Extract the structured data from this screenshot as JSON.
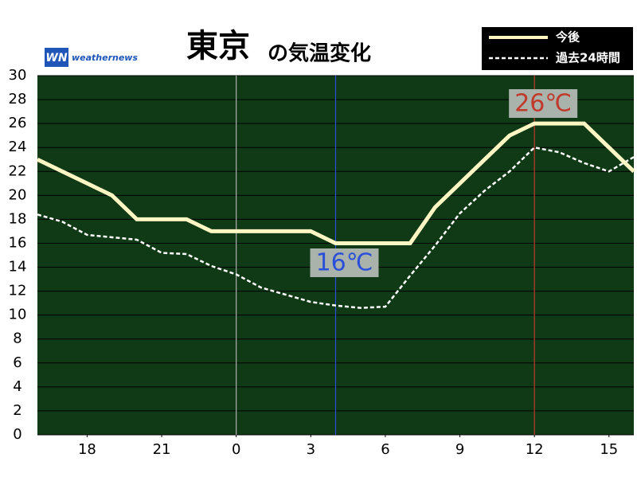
{
  "chart_data": {
    "type": "line",
    "title_main": "東京",
    "title_sub": "の気温変化",
    "logo": {
      "mark": "WN",
      "text": "weathernews"
    },
    "x": [
      16,
      17,
      18,
      19,
      20,
      21,
      22,
      23,
      24,
      25,
      26,
      27,
      28,
      29,
      30,
      31,
      32,
      33,
      34,
      35,
      36,
      37,
      38,
      39,
      40
    ],
    "series": [
      {
        "name": "今後",
        "color": "#fff6c4",
        "dashed": false,
        "values": [
          23,
          22,
          21,
          20,
          18,
          18,
          18,
          17,
          17,
          17,
          17,
          17,
          16,
          16,
          16,
          16,
          19,
          21,
          23,
          25,
          26,
          26,
          26,
          24,
          22
        ]
      },
      {
        "name": "過去24時間",
        "color": "#ffffff",
        "dashed": true,
        "values": [
          18.4,
          17.8,
          16.7,
          16.5,
          16.3,
          15.2,
          15.1,
          14.1,
          13.4,
          12.3,
          11.7,
          11.1,
          10.8,
          10.6,
          10.7,
          13.3,
          15.8,
          18.5,
          20.4,
          22,
          24,
          23.6,
          22.7,
          22,
          23.2
        ]
      }
    ],
    "xlim": [
      16,
      40
    ],
    "xticks": [
      {
        "value": 18,
        "label": "18"
      },
      {
        "value": 21,
        "label": "21"
      },
      {
        "value": 24,
        "label": "0"
      },
      {
        "value": 27,
        "label": "3"
      },
      {
        "value": 30,
        "label": "6"
      },
      {
        "value": 33,
        "label": "9"
      },
      {
        "value": 36,
        "label": "12"
      },
      {
        "value": 39,
        "label": "15"
      }
    ],
    "ylim": [
      0,
      30
    ],
    "yticks": [
      0,
      2,
      4,
      6,
      8,
      10,
      12,
      14,
      16,
      18,
      20,
      22,
      24,
      26,
      28,
      30
    ],
    "grid": true,
    "vlines": [
      {
        "x": 24,
        "color": "#b0b0b0"
      },
      {
        "x": 28,
        "color": "#2a4fd8",
        "label": "16℃"
      },
      {
        "x": 36,
        "color": "#c0392b",
        "label": "26℃"
      }
    ],
    "legend": "top-right"
  }
}
